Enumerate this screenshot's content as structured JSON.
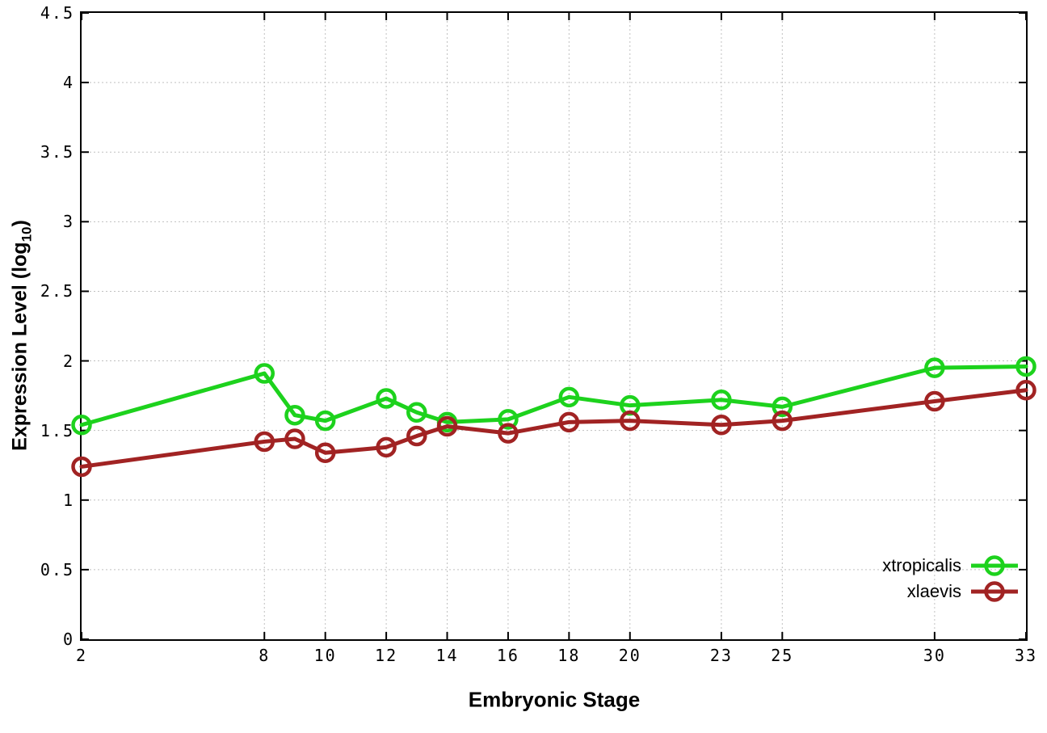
{
  "chart_data": {
    "type": "line",
    "title": "",
    "xlabel": "Embryonic Stage",
    "ylabel_pre": "Expression Level (log",
    "ylabel_sub": "10",
    "ylabel_post": ")",
    "x": [
      2,
      8,
      9,
      10,
      12,
      13,
      14,
      16,
      18,
      20,
      23,
      25,
      30,
      33
    ],
    "series": [
      {
        "name": "xtropicalis",
        "color": "#1dd21d",
        "values": [
          1.54,
          1.91,
          1.61,
          1.57,
          1.73,
          1.63,
          1.56,
          1.58,
          1.74,
          1.68,
          1.72,
          1.67,
          1.95,
          1.96
        ]
      },
      {
        "name": "xlaevis",
        "color": "#a12323",
        "values": [
          1.24,
          1.42,
          1.44,
          1.34,
          1.38,
          1.46,
          1.53,
          1.48,
          1.56,
          1.57,
          1.54,
          1.57,
          1.71,
          1.79
        ]
      }
    ],
    "xlim": [
      2,
      33
    ],
    "ylim": [
      0,
      4.5
    ],
    "xticks": [
      2,
      8,
      10,
      12,
      14,
      16,
      18,
      20,
      23,
      25,
      30,
      33
    ],
    "xtick_labels": [
      "2",
      "8",
      "10",
      "12",
      "14",
      "16",
      "18",
      "20",
      "23",
      "25",
      "30",
      "33"
    ],
    "yticks": [
      0,
      0.5,
      1,
      1.5,
      2,
      2.5,
      3,
      3.5,
      4,
      4.5
    ],
    "ytick_labels": [
      "0",
      "0.5",
      "1",
      "1.5",
      "2",
      "2.5",
      "3",
      "3.5",
      "4",
      "4.5"
    ],
    "grid": true,
    "grid_color": "#c0c0c0",
    "border_color": "#000000",
    "legend_position": "bottom-right"
  }
}
